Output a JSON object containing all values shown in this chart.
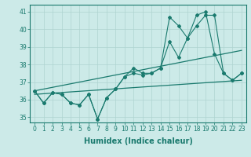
{
  "title": "",
  "xlabel": "Humidex (Indice chaleur)",
  "x_values": [
    0,
    1,
    2,
    3,
    4,
    5,
    6,
    7,
    8,
    9,
    10,
    11,
    12,
    13,
    14,
    15,
    16,
    17,
    18,
    19,
    20,
    21,
    22,
    23
  ],
  "line1_y": [
    36.5,
    35.8,
    36.4,
    36.3,
    35.8,
    35.7,
    36.3,
    34.9,
    36.1,
    36.6,
    37.3,
    37.5,
    37.4,
    37.5,
    37.8,
    39.3,
    38.4,
    39.5,
    40.2,
    40.8,
    40.8,
    37.5,
    37.1,
    37.5
  ],
  "line2_y": [
    36.5,
    35.8,
    36.4,
    36.3,
    35.8,
    35.7,
    36.3,
    34.9,
    36.1,
    36.6,
    37.3,
    37.8,
    37.5,
    37.5,
    37.8,
    40.7,
    40.2,
    39.5,
    40.8,
    41.0,
    38.6,
    37.5,
    37.1,
    37.5
  ],
  "trend1_x": [
    0,
    23
  ],
  "trend1_y": [
    36.3,
    37.1
  ],
  "trend2_x": [
    0,
    23
  ],
  "trend2_y": [
    36.5,
    38.8
  ],
  "color": "#1a7a6e",
  "bg_color": "#cceae8",
  "grid_color": "#aed4d0",
  "ylim": [
    34.7,
    41.4
  ],
  "xlim": [
    -0.5,
    23.5
  ],
  "tick_fontsize": 5.5,
  "label_fontsize": 7
}
